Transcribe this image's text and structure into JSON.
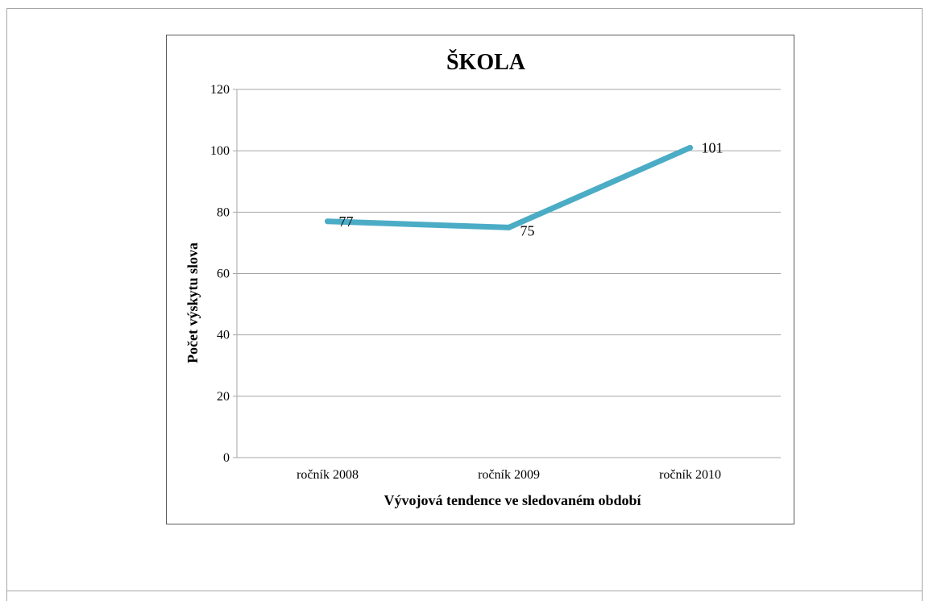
{
  "chart_data": {
    "type": "line",
    "title": "ŠKOLA",
    "xlabel": "Vývojová  tendence ve sledovaném období",
    "ylabel": "Počet výskytu slova",
    "categories": [
      "ročník 2008",
      "ročník 2009",
      "ročník 2010"
    ],
    "series": [
      {
        "values": [
          77,
          75,
          101
        ],
        "data_labels": [
          "77",
          "75",
          "101"
        ]
      }
    ],
    "ylim": [
      0,
      120
    ],
    "yticks": [
      0,
      20,
      40,
      60,
      80,
      100,
      120
    ],
    "ytick_labels": [
      "0",
      "20",
      "40",
      "60",
      "80",
      "100",
      "120"
    ],
    "grid": "horizontal",
    "legend": "none",
    "line_color": "#4bacc6",
    "grid_color": "#a6a6a6"
  }
}
